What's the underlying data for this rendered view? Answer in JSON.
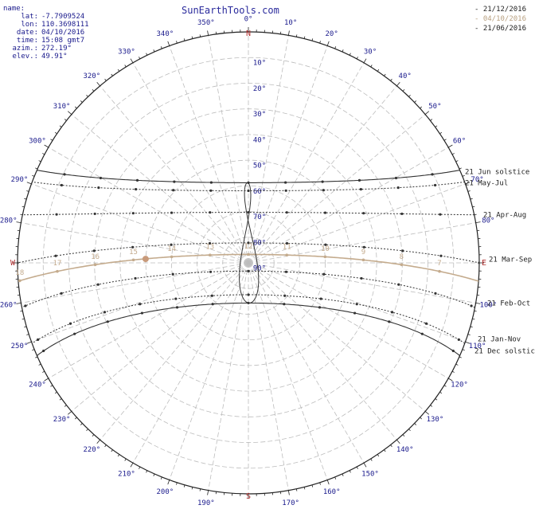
{
  "header": {
    "site_title": "SunEarthTools.com",
    "info_title": "name:",
    "info": [
      {
        "label": "lat:",
        "value": "-7.7909524"
      },
      {
        "label": "lon:",
        "value": "110.3698111"
      },
      {
        "label": "date:",
        "value": "04/10/2016"
      },
      {
        "label": "time:",
        "value": "15:08 gmt7"
      },
      {
        "label": "azim.:",
        "value": "272.19°"
      },
      {
        "label": "elev.:",
        "value": "49.91°"
      }
    ]
  },
  "legend": [
    {
      "text": "- 21/12/2016",
      "color": "#222222"
    },
    {
      "text": "- 04/10/2016",
      "color": "#b8a080"
    },
    {
      "text": "- 21/06/2016",
      "color": "#222222"
    }
  ],
  "colors": {
    "grid": "#bdbdbd",
    "outline": "#222222",
    "path": "#333333",
    "today": "#c4ab8d",
    "sun": "#c89a7a",
    "cardinal": "#b03030",
    "label": "#1a1a8c"
  },
  "cardinals": {
    "N": "N",
    "S": "S",
    "E": "E",
    "W": "W"
  },
  "azimuth_labels": [
    "0°",
    "10°",
    "20°",
    "30°",
    "40°",
    "50°",
    "60°",
    "70°",
    "80°",
    "100°",
    "110°",
    "120°",
    "130°",
    "140°",
    "150°",
    "160°",
    "170°",
    "190°",
    "200°",
    "210°",
    "220°",
    "230°",
    "240°",
    "250°",
    "260°",
    "280°",
    "290°",
    "300°",
    "310°",
    "320°",
    "330°",
    "340°",
    "350°"
  ],
  "elevation_labels": [
    "10°",
    "20°",
    "30°",
    "40°",
    "50°",
    "60°",
    "70°",
    "80°",
    "90°"
  ],
  "path_labels": [
    "21 Jun  solstice",
    "21 May-Jul",
    "21 Apr-Aug",
    "21 Mar-Sep",
    "21 Feb-Oct",
    "21 Jan-Nov",
    "21 Dec  solstice"
  ],
  "hour_labels": [
    "18",
    "17",
    "16",
    "15",
    "14",
    "13",
    "12",
    "11",
    "10",
    "9",
    "8",
    "7"
  ],
  "chart_data": {
    "type": "polar sun path",
    "current_sun": {
      "azimuth": 272.19,
      "elevation": 49.91
    },
    "date_paths": [
      {
        "label": "21 Jun  solstice",
        "style": "solid",
        "decl": 23.44
      },
      {
        "label": "21 May-Jul",
        "style": "dotted",
        "decl": 20.3
      },
      {
        "label": "21 Apr-Aug",
        "style": "dotted",
        "decl": 11.9
      },
      {
        "label": "21 Mar-Sep",
        "style": "dotted",
        "decl": 0.0
      },
      {
        "label": "21 Feb-Oct",
        "style": "dotted",
        "decl": -11.0
      },
      {
        "label": "21 Jan-Nov",
        "style": "dotted",
        "decl": -20.2
      },
      {
        "label": "21 Dec  solstice",
        "style": "solid",
        "decl": -23.44
      }
    ],
    "today_path": {
      "date": "04/10/2016",
      "decl": -4.5
    },
    "today_hours": [
      18,
      17,
      16,
      15,
      14,
      13,
      12,
      11,
      10,
      9,
      8,
      7
    ]
  }
}
